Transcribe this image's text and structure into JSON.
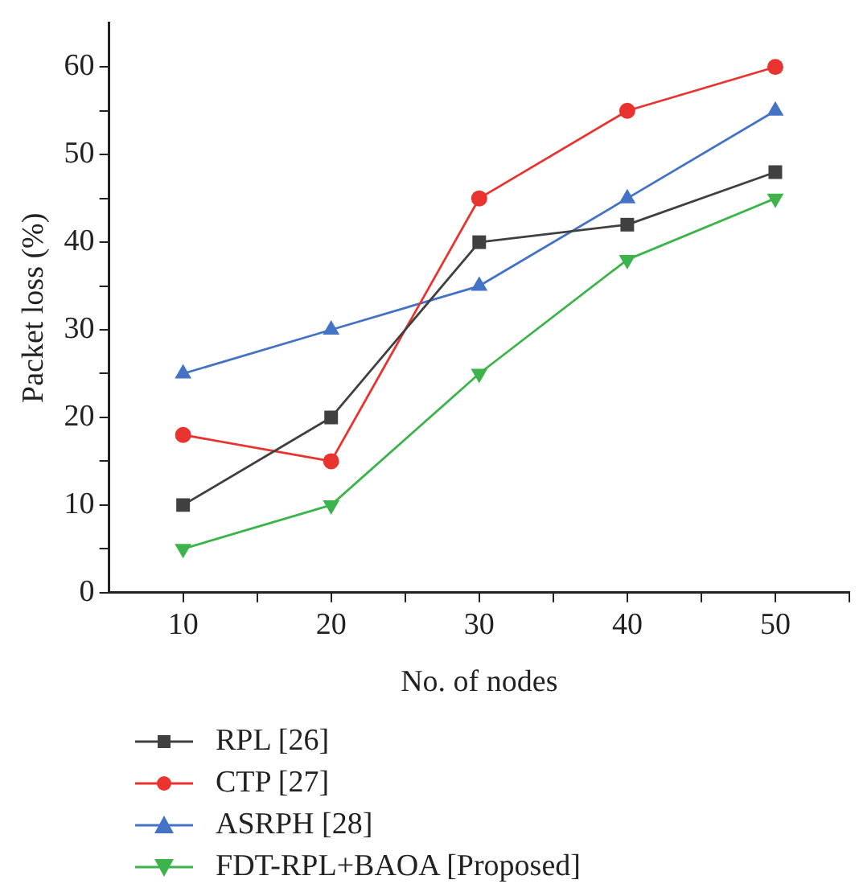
{
  "chart_data": {
    "type": "line",
    "xlabel": "No. of nodes",
    "ylabel": "Packet loss (%)",
    "x": [
      10,
      20,
      30,
      40,
      50
    ],
    "xlim": [
      5,
      55
    ],
    "ylim": [
      0,
      65
    ],
    "xticks": [
      10,
      {
        "value": 15,
        "label": null
      },
      20,
      {
        "value": 25,
        "label": null
      },
      30,
      {
        "value": 35,
        "label": null
      },
      40,
      {
        "value": 45,
        "label": null
      },
      50,
      {
        "value": 55,
        "label": null
      }
    ],
    "yticks": [
      0,
      {
        "value": 5,
        "label": null
      },
      10,
      {
        "value": 15,
        "label": null
      },
      20,
      {
        "value": 25,
        "label": null
      },
      30,
      {
        "value": 35,
        "label": null
      },
      40,
      {
        "value": 45,
        "label": null
      },
      50,
      {
        "value": 55,
        "label": null
      },
      60
    ],
    "grid": false,
    "legend": "bottom",
    "line_style": "solid",
    "series": [
      {
        "name": "RPL [26]",
        "color": "#404040",
        "marker": "square",
        "values": [
          10,
          20,
          40,
          42,
          48
        ]
      },
      {
        "name": "CTP [27]",
        "color": "#e8332f",
        "marker": "circle",
        "values": [
          18,
          15,
          45,
          55,
          60
        ]
      },
      {
        "name": "ASRPH [28]",
        "color": "#4472c4",
        "marker": "triangle",
        "values": [
          25,
          30,
          35,
          45,
          55
        ]
      },
      {
        "name": "FDT-RPL+BAOA [Proposed]",
        "color": "#3cb44b",
        "marker": "triangle-down",
        "values": [
          5,
          10,
          25,
          38,
          45
        ]
      }
    ]
  }
}
